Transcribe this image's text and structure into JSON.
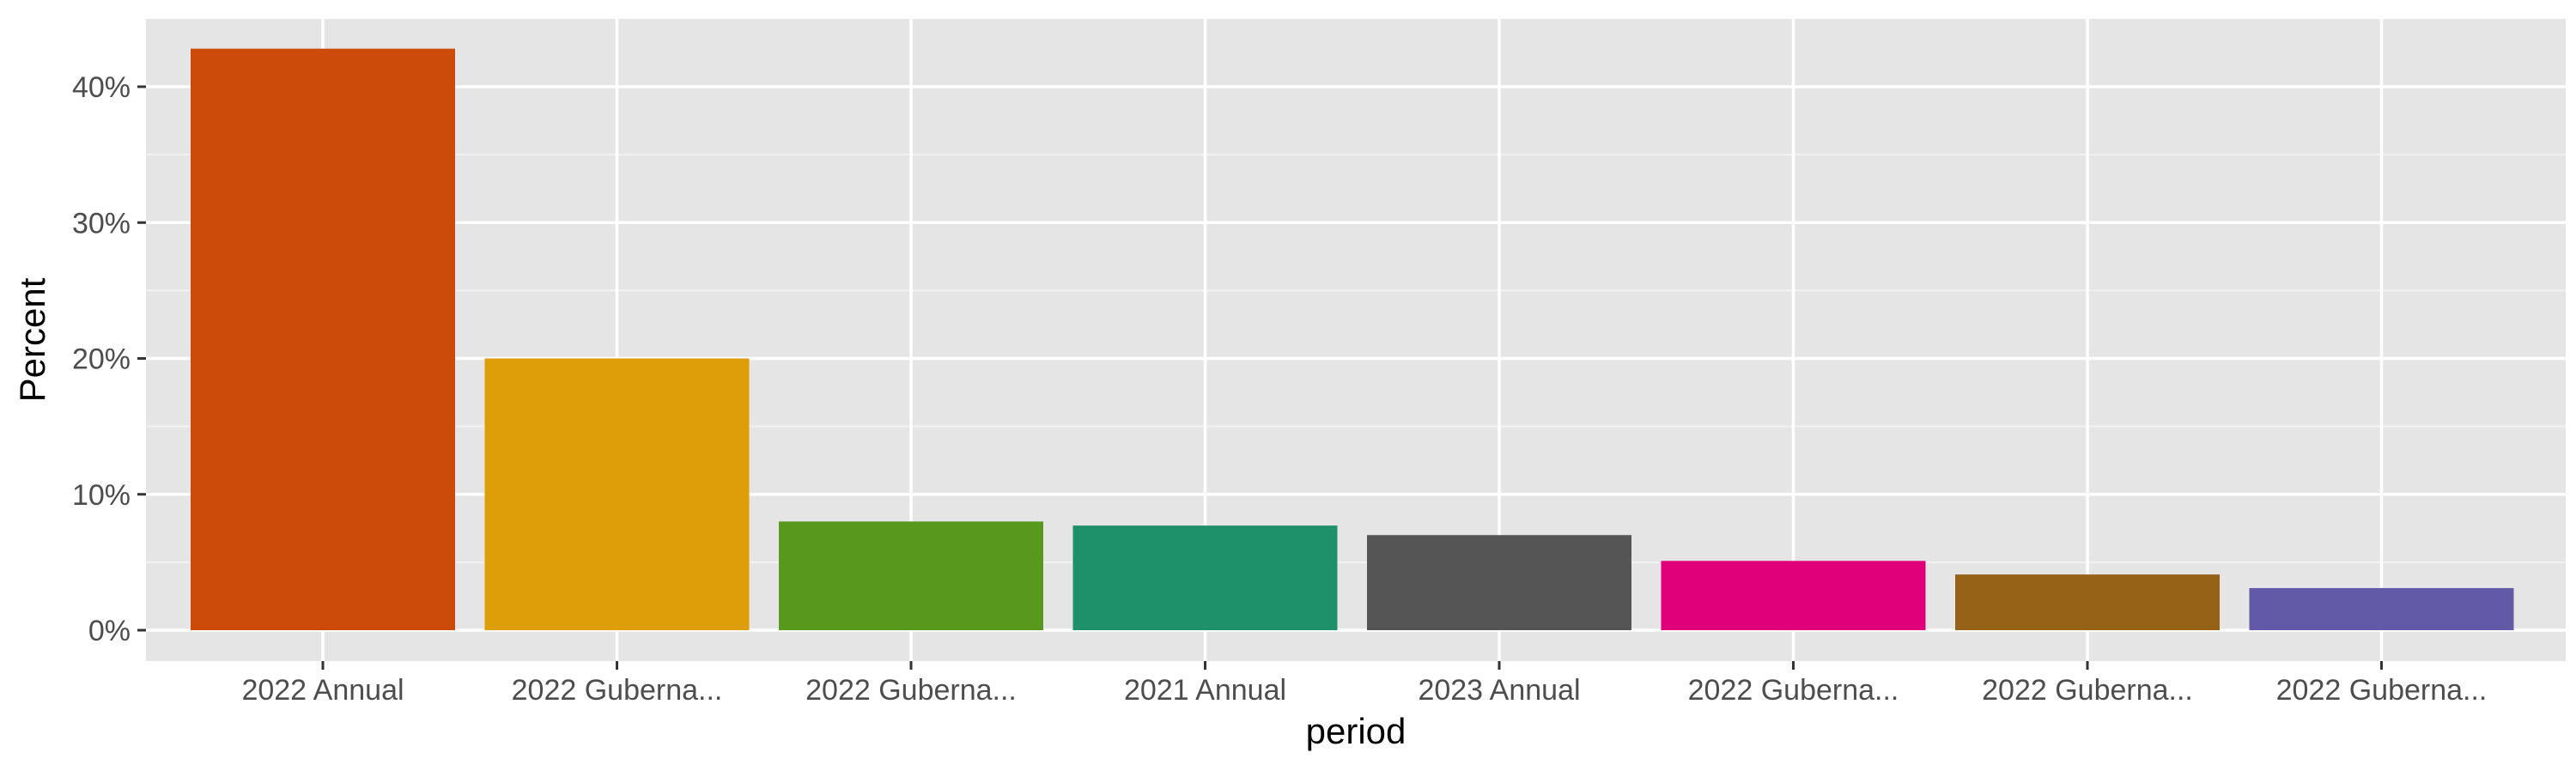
{
  "chart_data": {
    "type": "bar",
    "title": "",
    "xlabel": "period",
    "ylabel": "Percent",
    "categories": [
      "2022 Annual",
      "2022 Guberna...",
      "2022 Guberna...",
      "2021 Annual",
      "2023 Annual",
      "2022 Guberna...",
      "2022 Guberna...",
      "2022 Guberna..."
    ],
    "values": [
      42.8,
      20.0,
      8.0,
      7.7,
      7.0,
      5.1,
      4.1,
      3.1
    ],
    "colors": [
      "#CC4A0A",
      "#DE9E08",
      "#57991C",
      "#1E906A",
      "#555555",
      "#DF007A",
      "#966218",
      "#6259A7"
    ],
    "ylim": [
      0,
      44
    ],
    "yticks": [
      0,
      10,
      20,
      30,
      40
    ],
    "ytick_labels": [
      "0%",
      "10%",
      "20%",
      "30%",
      "40%"
    ],
    "grid": true,
    "panel_background": "#E5E5E5",
    "grid_color": "#FFFFFF",
    "legend": "none"
  }
}
